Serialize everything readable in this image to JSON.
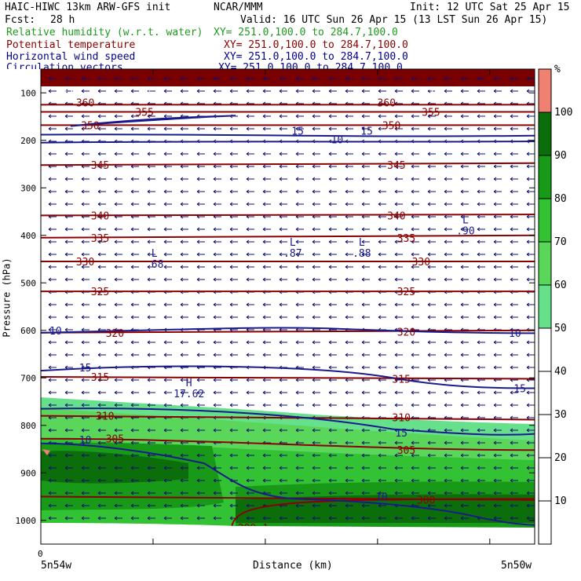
{
  "header": {
    "model_line": "HAIC-HIWC 13km ARW-GFS init",
    "center": "NCAR/MMM",
    "init": "Init: 12 UTC Sat 25 Apr 15",
    "fcst_label": "Fcst:",
    "fcst_value": "28 h",
    "valid": "Valid: 16 UTC Sun 26 Apr 15 (13 LST Sun 26 Apr 15)"
  },
  "fields": [
    {
      "name": "Relative humidity (w.r.t. water)",
      "xy": "XY= 251.0,100.0 to 284.7,100.0",
      "color": "#1f9a1f"
    },
    {
      "name": "Potential temperature",
      "xy": "XY= 251.0,100.0 to 284.7,100.0",
      "color": "#8b0000"
    },
    {
      "name": "Horizontal wind speed",
      "xy": "XY= 251.0,100.0 to 284.7,100.0",
      "color": "#00008b"
    },
    {
      "name": "Circulation vectors",
      "xy": "XY= 251.0,100.0 to 284.7,100.0",
      "color": "#00008b"
    }
  ],
  "colors": {
    "theta": "#8b0000",
    "wind": "#1a1a8c",
    "vectors": "#101070",
    "rh_50_60": "#66e08a",
    "rh_60_70": "#5ad65a",
    "rh_70_80": "#33c233",
    "rh_80_90": "#189a18",
    "rh_90_100": "#0b6e0b",
    "rh_100_plus": "#f08070",
    "theta_band": "#7a0000"
  },
  "chart_data": {
    "type": "cross-section",
    "xlabel": "Distance (km)",
    "ylabel": "Pressure (hPa)",
    "x_start_label": "5n54w",
    "x_end_label": "5n50w",
    "x_origin_label": "0",
    "y_ticks": [
      "100",
      "200",
      "300",
      "400",
      "500",
      "600",
      "700",
      "800",
      "900",
      "1000"
    ],
    "ylim": [
      1050,
      50
    ],
    "colorbar": {
      "unit": "%",
      "ticks": [
        "10",
        "20",
        "30",
        "40",
        "50",
        "60",
        "70",
        "80",
        "90",
        "100"
      ],
      "levels": [
        {
          "from": 50,
          "to": 60,
          "color": "#66e08a"
        },
        {
          "from": 60,
          "to": 70,
          "color": "#5ad65a"
        },
        {
          "from": 70,
          "to": 80,
          "color": "#33c233"
        },
        {
          "from": 80,
          "to": 90,
          "color": "#189a18"
        },
        {
          "from": 90,
          "to": 100,
          "color": "#0b6e0b"
        },
        {
          "from": 100,
          "to": 110,
          "color": "#f08070"
        }
      ]
    },
    "theta_labels": [
      {
        "text": "370",
        "x": 0.06,
        "p": 100
      },
      {
        "text": "375",
        "x": 0.21,
        "p": 100
      },
      {
        "text": "375",
        "x": 0.79,
        "p": 100
      },
      {
        "text": "360",
        "x": 0.09,
        "p": 120
      },
      {
        "text": "360",
        "x": 0.7,
        "p": 120
      },
      {
        "text": "355",
        "x": 0.21,
        "p": 140
      },
      {
        "text": "355",
        "x": 0.79,
        "p": 140
      },
      {
        "text": "350",
        "x": 0.1,
        "p": 168
      },
      {
        "text": "350",
        "x": 0.71,
        "p": 168
      },
      {
        "text": "345",
        "x": 0.12,
        "p": 252
      },
      {
        "text": "345",
        "x": 0.72,
        "p": 252
      },
      {
        "text": "340",
        "x": 0.12,
        "p": 358
      },
      {
        "text": "340",
        "x": 0.72,
        "p": 358
      },
      {
        "text": "335",
        "x": 0.12,
        "p": 405
      },
      {
        "text": "335",
        "x": 0.74,
        "p": 405
      },
      {
        "text": "330",
        "x": 0.09,
        "p": 455
      },
      {
        "text": "330",
        "x": 0.77,
        "p": 455
      },
      {
        "text": "325",
        "x": 0.12,
        "p": 518
      },
      {
        "text": "325",
        "x": 0.74,
        "p": 518
      },
      {
        "text": "320",
        "x": 0.15,
        "p": 605
      },
      {
        "text": "320",
        "x": 0.74,
        "p": 603
      },
      {
        "text": "315",
        "x": 0.12,
        "p": 698
      },
      {
        "text": "315",
        "x": 0.73,
        "p": 702
      },
      {
        "text": "310",
        "x": 0.13,
        "p": 780
      },
      {
        "text": "310",
        "x": 0.73,
        "p": 783
      },
      {
        "text": "305",
        "x": 0.15,
        "p": 828
      },
      {
        "text": "305",
        "x": 0.74,
        "p": 852
      },
      {
        "text": "300",
        "x": 0.78,
        "p": 957
      },
      {
        "text": "299.1",
        "x": 0.43,
        "p": 1015
      }
    ],
    "wind_labels": [
      {
        "text": "15",
        "x": 0.52,
        "p": 180
      },
      {
        "text": "15",
        "x": 0.66,
        "p": 180
      },
      {
        "text": "10",
        "x": 0.6,
        "p": 198
      },
      {
        "text": "10",
        "x": 0.03,
        "p": 600
      },
      {
        "text": "10",
        "x": 0.96,
        "p": 605
      },
      {
        "text": "15",
        "x": 0.09,
        "p": 678
      },
      {
        "text": "15",
        "x": 0.97,
        "p": 722
      },
      {
        "text": "15",
        "x": 0.73,
        "p": 815
      },
      {
        "text": "10",
        "x": 0.09,
        "p": 830
      },
      {
        "text": "10",
        "x": 0.69,
        "p": 950
      }
    ],
    "extrema": [
      {
        "type": "L",
        "value": ".68",
        "x": 0.23,
        "p": 455
      },
      {
        "type": "L",
        "value": ".87",
        "x": 0.51,
        "p": 432
      },
      {
        "type": "L",
        "value": ".88",
        "x": 0.65,
        "p": 432
      },
      {
        "type": "L",
        "value": ".90",
        "x": 0.86,
        "p": 385
      },
      {
        "type": "H",
        "value": "17.62",
        "x": 0.3,
        "p": 728
      }
    ]
  }
}
